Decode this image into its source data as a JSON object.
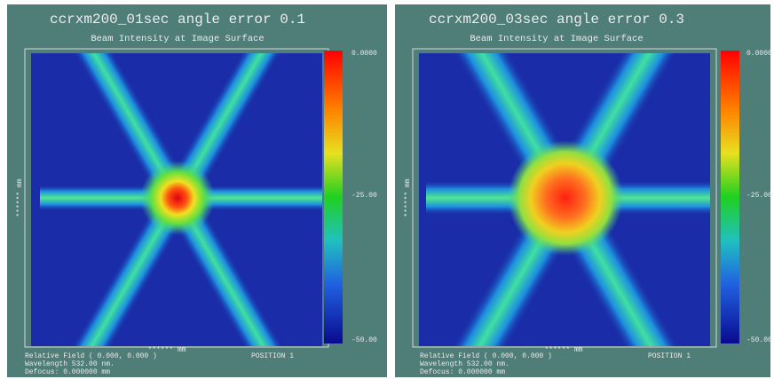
{
  "panels": [
    {
      "title": "ccrxm200_01sec angle error 0.1",
      "subtitle": "Beam Intensity at Image Surface",
      "colorbar": [
        "0.0000",
        "-25.00",
        "-50.00"
      ],
      "x_axis": "****** mm",
      "y_axis": "****** mm",
      "field": "Relative Field (  0.000,    0.000 )",
      "position": "POSITION  1",
      "wavelength": "Wavelength   532.00 nm.",
      "defocus": "Defocus: 0.000000 mm"
    },
    {
      "title": "ccrxm200_03sec angle error 0.3",
      "subtitle": "Beam Intensity at Image Surface",
      "colorbar": [
        "0.0000",
        "-25.00",
        "-50.00"
      ],
      "x_axis": "****** mm",
      "y_axis": "****** mm",
      "field": "Relative Field (  0.000,    0.000 )",
      "position": "POSITION  1",
      "wavelength": "Wavelength   532.00 nm.",
      "defocus": "Defocus: 0.000000 mm"
    }
  ]
}
